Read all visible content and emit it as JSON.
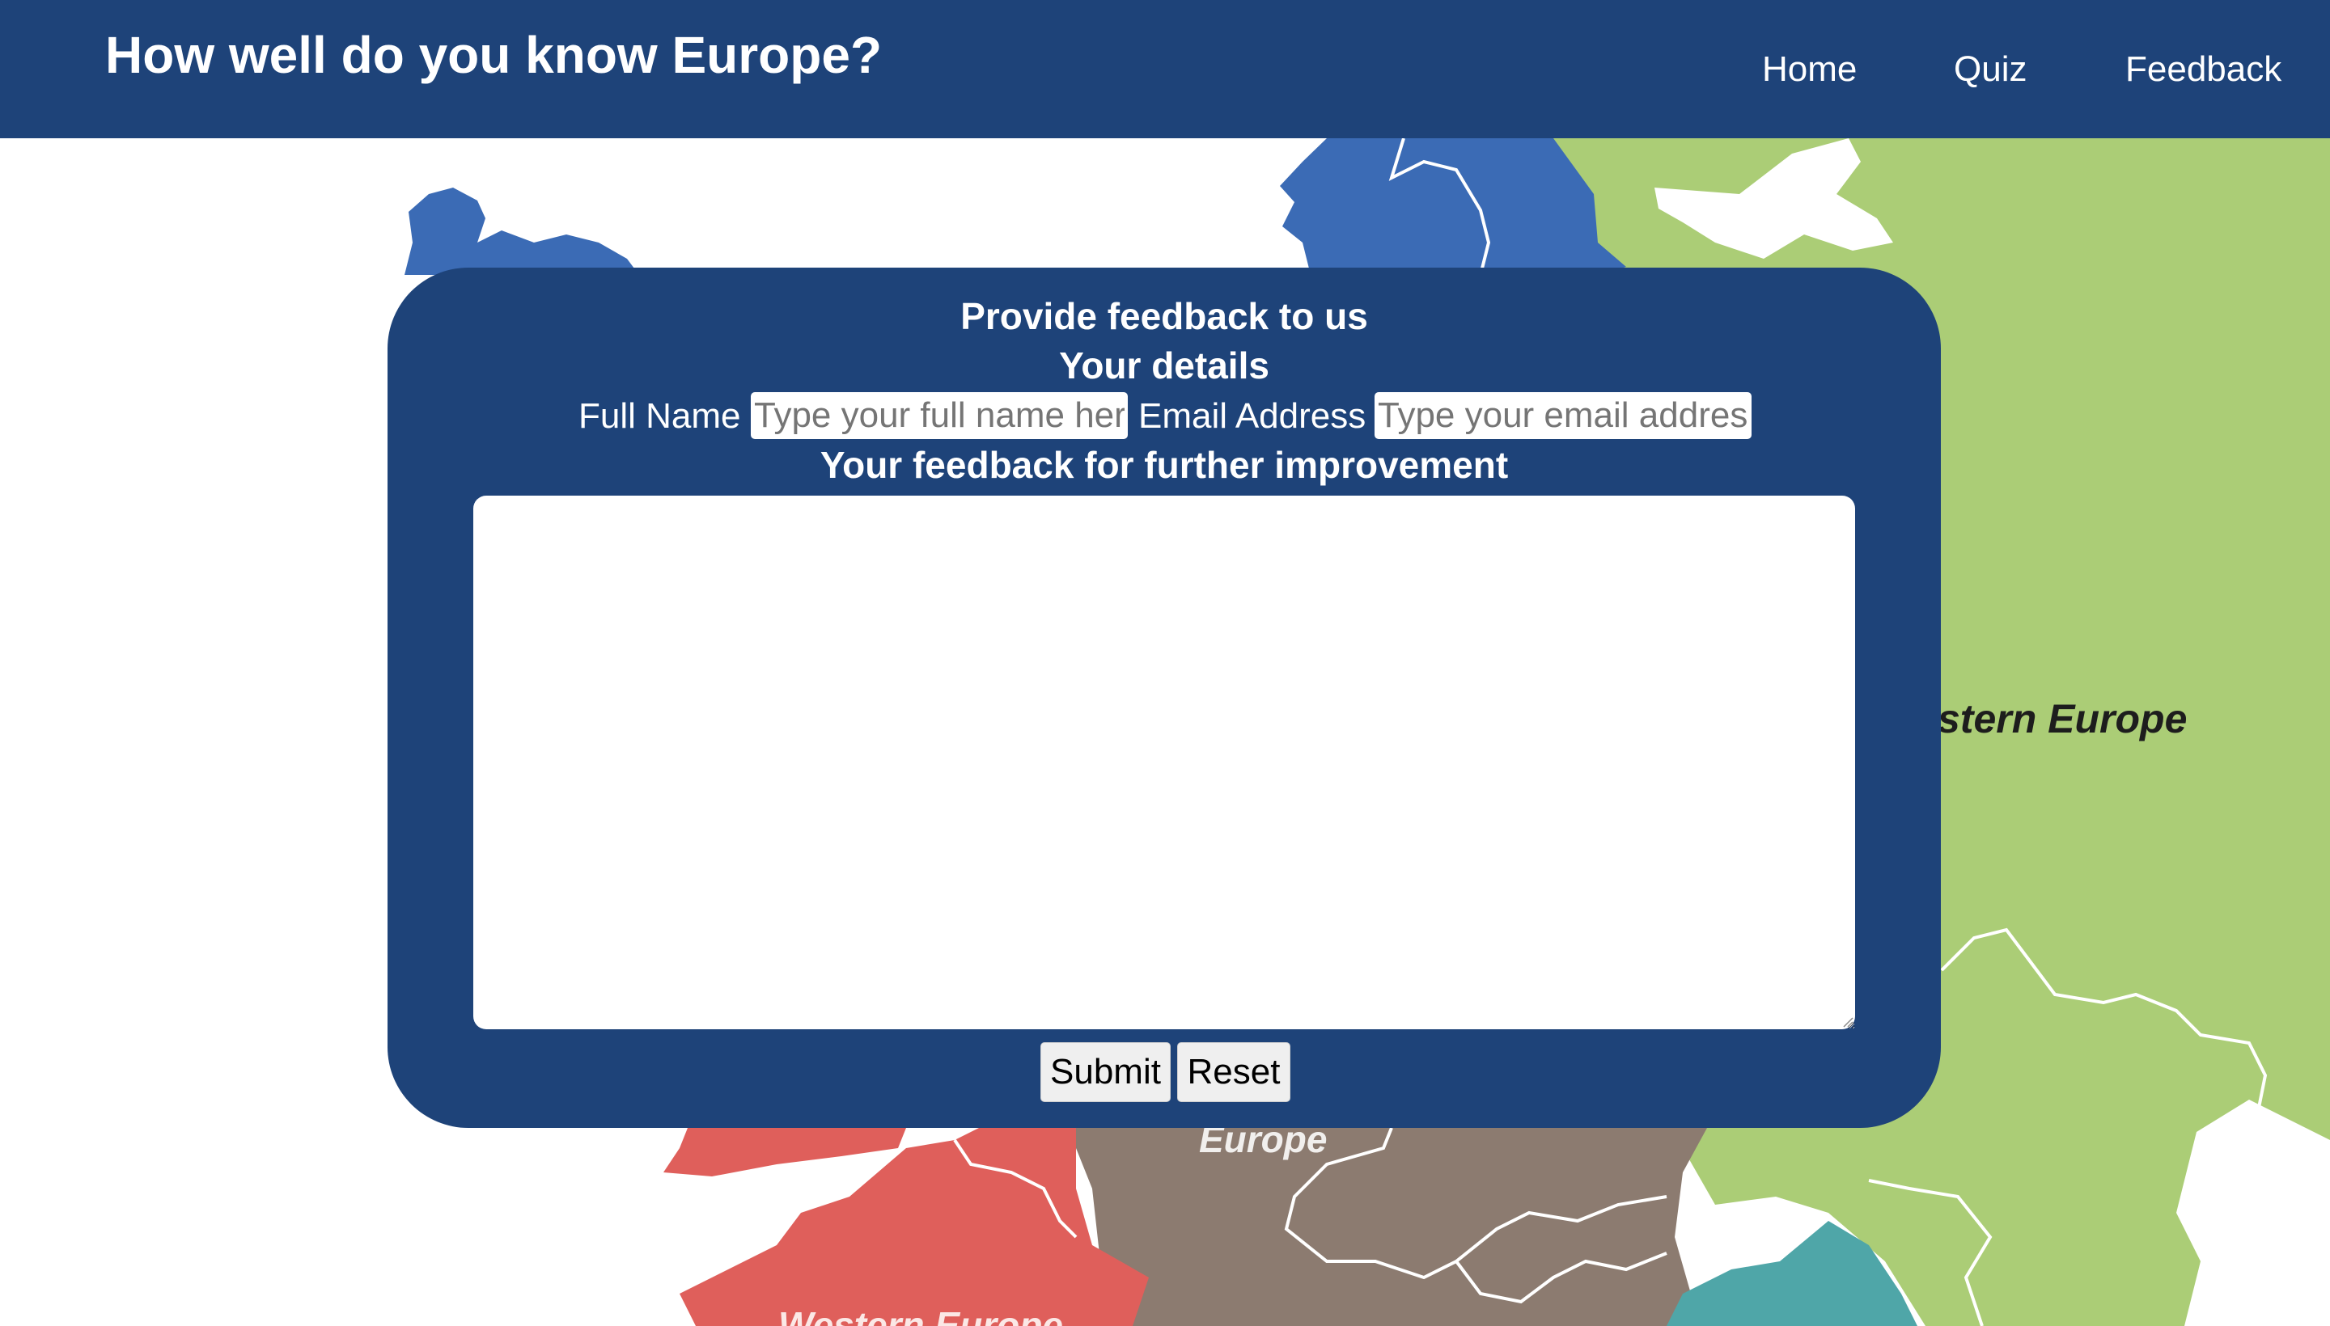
{
  "header": {
    "title": "How well do you know Europe?",
    "nav": [
      {
        "label": "Home"
      },
      {
        "label": "Quiz"
      },
      {
        "label": "Feedback"
      }
    ],
    "background_color": "#1e4379"
  },
  "background_map": {
    "region_labels": {
      "east": "stern Europe",
      "central": "Europe",
      "west": "Western Europe"
    },
    "colors": {
      "northern": "#3b6bb5",
      "eastern": "#abcd76",
      "central": "#8c7b70",
      "western": "#df5f5b",
      "southeastern": "#4fa6a8"
    }
  },
  "feedback_form": {
    "heading": "Provide feedback to us",
    "details_heading": "Your details",
    "full_name_label": "Full Name",
    "full_name_placeholder": "Type your full name here",
    "full_name_value": "",
    "email_label": "Email Address",
    "email_placeholder": "Type your email address",
    "email_value": "",
    "feedback_heading": "Your feedback for further improvement",
    "feedback_value": "",
    "submit_label": "Submit",
    "reset_label": "Reset",
    "card_color": "#1e4379"
  }
}
